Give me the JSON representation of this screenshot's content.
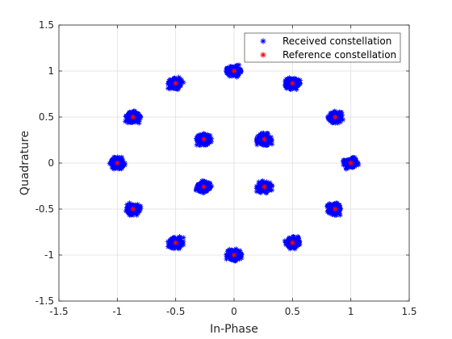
{
  "chart_data": {
    "type": "scatter",
    "xlabel": "In-Phase",
    "ylabel": "Quadrature",
    "xlim": [
      -1.5,
      1.5
    ],
    "ylim": [
      -1.5,
      1.5
    ],
    "xticks": [
      "-1.5",
      "-1",
      "-0.5",
      "0",
      "0.5",
      "1",
      "1.5"
    ],
    "yticks": [
      "-1.5",
      "-1",
      "-0.5",
      "0",
      "0.5",
      "1",
      "1.5"
    ],
    "grid": true,
    "legend_position": "top-right",
    "series": [
      {
        "name": "Received constellation",
        "marker": "asterisk",
        "color": "#0000ff",
        "cluster_spread": 0.06,
        "centers": [
          [
            1.0,
            0.0
          ],
          [
            0.866,
            0.5
          ],
          [
            0.5,
            0.866
          ],
          [
            0.0,
            1.0
          ],
          [
            -0.5,
            0.866
          ],
          [
            -0.866,
            0.5
          ],
          [
            -1.0,
            0.0
          ],
          [
            -0.866,
            -0.5
          ],
          [
            -0.5,
            -0.866
          ],
          [
            0.0,
            -1.0
          ],
          [
            0.5,
            -0.866
          ],
          [
            0.866,
            -0.5
          ],
          [
            0.259,
            0.259
          ],
          [
            -0.259,
            0.259
          ],
          [
            -0.259,
            -0.259
          ],
          [
            0.259,
            -0.259
          ]
        ]
      },
      {
        "name": "Reference constellation",
        "marker": "asterisk",
        "color": "#ff0000",
        "points": [
          [
            1.0,
            0.0
          ],
          [
            0.866,
            0.5
          ],
          [
            0.5,
            0.866
          ],
          [
            0.0,
            1.0
          ],
          [
            -0.5,
            0.866
          ],
          [
            -0.866,
            0.5
          ],
          [
            -1.0,
            0.0
          ],
          [
            -0.866,
            -0.5
          ],
          [
            -0.5,
            -0.866
          ],
          [
            0.0,
            -1.0
          ],
          [
            0.5,
            -0.866
          ],
          [
            0.866,
            -0.5
          ],
          [
            0.259,
            0.259
          ],
          [
            -0.259,
            0.259
          ],
          [
            -0.259,
            -0.259
          ],
          [
            0.259,
            -0.259
          ]
        ]
      }
    ]
  }
}
